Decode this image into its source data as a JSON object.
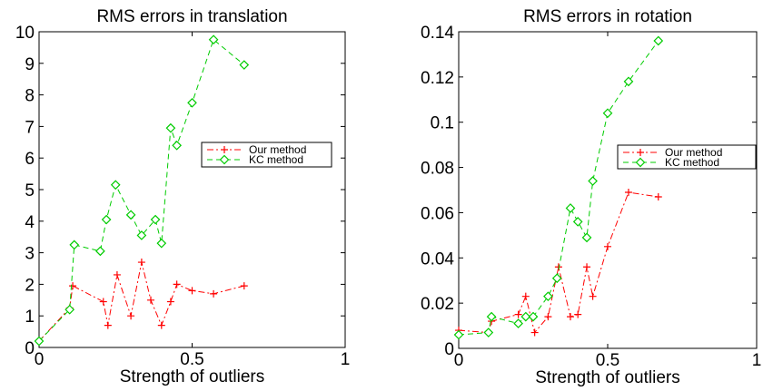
{
  "chart_data": [
    {
      "type": "line",
      "title": "RMS errors in translation",
      "xlabel": "Strength of outliers",
      "ylabel": "",
      "xlim": [
        0,
        1
      ],
      "ylim": [
        0,
        10
      ],
      "xticks": [
        0,
        0.5,
        1
      ],
      "xtick_labels": [
        "0",
        "0.5",
        "1"
      ],
      "yticks": [
        0,
        1,
        2,
        3,
        4,
        5,
        6,
        7,
        8,
        9,
        10
      ],
      "ytick_labels": [
        "0",
        "1",
        "2",
        "3",
        "4",
        "5",
        "6",
        "7",
        "8",
        "9",
        "10"
      ],
      "grid": false,
      "legend_position": "center-right",
      "series": [
        {
          "name": "Our method",
          "color": "#ff0000",
          "line_style": "dashdot",
          "marker": "plus",
          "x": [
            0.0,
            0.1,
            0.11,
            0.21,
            0.225,
            0.255,
            0.3,
            0.335,
            0.365,
            0.4,
            0.43,
            0.45,
            0.5,
            0.57,
            0.67
          ],
          "y": [
            0.2,
            1.25,
            1.95,
            1.45,
            0.7,
            2.3,
            1.0,
            2.7,
            1.5,
            0.7,
            1.45,
            2.0,
            1.8,
            1.7,
            1.95
          ]
        },
        {
          "name": "KC method",
          "color": "#00cc00",
          "line_style": "dashed",
          "marker": "diamond",
          "x": [
            0.0,
            0.1,
            0.115,
            0.2,
            0.22,
            0.25,
            0.3,
            0.335,
            0.38,
            0.4,
            0.43,
            0.45,
            0.5,
            0.57,
            0.67
          ],
          "y": [
            0.2,
            1.2,
            3.25,
            3.05,
            4.05,
            5.15,
            4.2,
            3.55,
            4.05,
            3.3,
            6.95,
            6.4,
            7.75,
            9.75,
            8.95
          ]
        }
      ]
    },
    {
      "type": "line",
      "title": "RMS errors in rotation",
      "xlabel": "Strength of outliers",
      "ylabel": "",
      "xlim": [
        0,
        1
      ],
      "ylim": [
        0,
        0.14
      ],
      "xticks": [
        0,
        0.5,
        1
      ],
      "xtick_labels": [
        "0",
        "0.5",
        "1"
      ],
      "yticks": [
        0,
        0.02,
        0.04,
        0.06,
        0.08,
        0.1,
        0.12,
        0.14
      ],
      "ytick_labels": [
        "0",
        "0.02",
        "0.04",
        "0.06",
        "0.08",
        "0.1",
        "0.12",
        "0.14"
      ],
      "grid": false,
      "legend_position": "center-right",
      "series": [
        {
          "name": "Our method",
          "color": "#ff0000",
          "line_style": "dashdot",
          "marker": "plus",
          "x": [
            0.0,
            0.1,
            0.11,
            0.2,
            0.225,
            0.255,
            0.3,
            0.335,
            0.375,
            0.4,
            0.43,
            0.45,
            0.5,
            0.57,
            0.67
          ],
          "y": [
            0.008,
            0.007,
            0.012,
            0.015,
            0.023,
            0.007,
            0.014,
            0.036,
            0.014,
            0.015,
            0.036,
            0.023,
            0.045,
            0.069,
            0.067
          ]
        },
        {
          "name": "KC method",
          "color": "#00cc00",
          "line_style": "dashed",
          "marker": "diamond",
          "x": [
            0.0,
            0.1,
            0.11,
            0.2,
            0.225,
            0.25,
            0.3,
            0.33,
            0.375,
            0.4,
            0.43,
            0.45,
            0.5,
            0.57,
            0.67
          ],
          "y": [
            0.006,
            0.007,
            0.014,
            0.011,
            0.014,
            0.014,
            0.023,
            0.031,
            0.062,
            0.056,
            0.049,
            0.074,
            0.104,
            0.118,
            0.136
          ]
        }
      ]
    }
  ]
}
